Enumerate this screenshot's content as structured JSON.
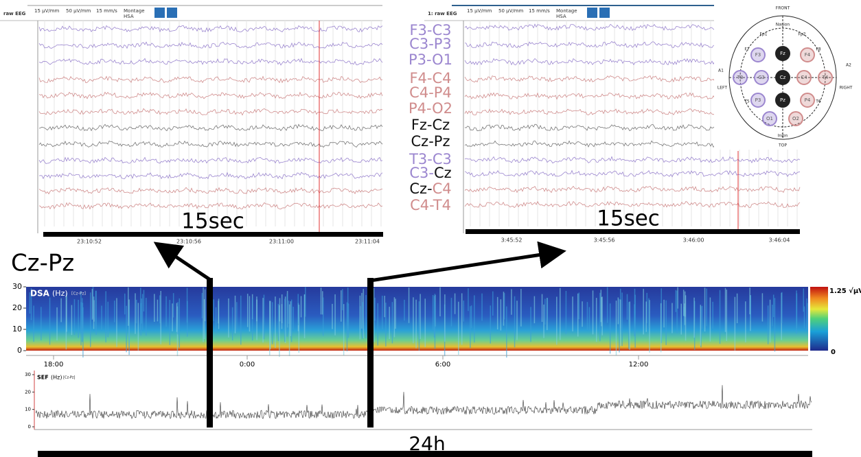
{
  "left_panel": {
    "toolbar": {
      "title": "raw EEG",
      "sens1": "15 µV/mm",
      "sens2": "50 µV/mm",
      "speed": "15 mm/s",
      "montage": "Montage",
      "montage_name": "HSA"
    },
    "times": [
      "23:10:52",
      "23:10:56",
      "23:11:00",
      "23:11:04"
    ],
    "duration": "15sec"
  },
  "right_panel": {
    "toolbar": {
      "title": "1: raw EEG",
      "sens1": "15 µV/mm",
      "sens2": "50 µV/mm",
      "speed": "15 mm/s",
      "montage": "Montage",
      "montage_name": "HSA"
    },
    "times": [
      "3:45:52",
      "3:45:56",
      "3:46:00",
      "3:46:04"
    ],
    "duration": "15sec"
  },
  "channels": [
    {
      "parts": [
        {
          "text": "F3-C3",
          "color": "#9b86cf"
        }
      ],
      "trace_color": "#9b86cf"
    },
    {
      "parts": [
        {
          "text": "C3-P3",
          "color": "#9b86cf"
        }
      ],
      "trace_color": "#9b86cf"
    },
    {
      "parts": [
        {
          "text": "P3-O1",
          "color": "#9b86cf"
        }
      ],
      "trace_color": "#9b86cf"
    },
    {
      "parts": [
        {
          "text": "F4-C4",
          "color": "#d08c8c"
        }
      ],
      "trace_color": "#d08c8c"
    },
    {
      "parts": [
        {
          "text": "C4-P4",
          "color": "#d08c8c"
        }
      ],
      "trace_color": "#d08c8c"
    },
    {
      "parts": [
        {
          "text": "P4-O2",
          "color": "#d08c8c"
        }
      ],
      "trace_color": "#d08c8c"
    },
    {
      "parts": [
        {
          "text": "Fz-Cz",
          "color": "#111111"
        }
      ],
      "trace_color": "#777777"
    },
    {
      "parts": [
        {
          "text": "Cz-Pz",
          "color": "#111111"
        }
      ],
      "trace_color": "#777777"
    },
    {
      "parts": [
        {
          "text": "T3-C3",
          "color": "#9b86cf"
        }
      ],
      "trace_color": "#9b86cf"
    },
    {
      "parts": [
        {
          "text": "C3-",
          "color": "#9b86cf"
        },
        {
          "text": "Cz",
          "color": "#111111"
        }
      ],
      "trace_color": "#9b86cf"
    },
    {
      "parts": [
        {
          "text": "Cz-",
          "color": "#111111"
        },
        {
          "text": "C4",
          "color": "#d08c8c"
        }
      ],
      "trace_color": "#d08c8c"
    },
    {
      "parts": [
        {
          "text": "C4-T4",
          "color": "#d08c8c"
        }
      ],
      "trace_color": "#d08c8c"
    }
  ],
  "head": {
    "front": "FRONT",
    "nasion": "Nasion",
    "inion": "Inion",
    "top": "TOP",
    "left": "LEFT",
    "right": "RIGHT",
    "a1": "A1",
    "a2": "A2",
    "fp1": "Fp1",
    "fp2": "Fp2",
    "f7": "F7",
    "f8": "F8",
    "t5": "T5",
    "t6": "T6",
    "electrodes": [
      {
        "label": "F3",
        "color": "#9b86cf"
      },
      {
        "label": "Fz",
        "color": "#222222"
      },
      {
        "label": "F4",
        "color": "#d08c8c"
      },
      {
        "label": "T3",
        "color": "#9b86cf"
      },
      {
        "label": "C3",
        "color": "#9b86cf"
      },
      {
        "label": "Cz",
        "color": "#222222"
      },
      {
        "label": "C4",
        "color": "#d08c8c"
      },
      {
        "label": "T4",
        "color": "#d08c8c"
      },
      {
        "label": "P3",
        "color": "#9b86cf"
      },
      {
        "label": "Pz",
        "color": "#222222"
      },
      {
        "label": "P4",
        "color": "#d08c8c"
      },
      {
        "label": "O1",
        "color": "#9b86cf"
      },
      {
        "label": "O2",
        "color": "#d08c8c"
      }
    ]
  },
  "overview_channel": "Cz-Pz",
  "dsa": {
    "label": "DSA",
    "unit": "(Hz)",
    "channel": "[Cz-Pz]",
    "ylim": [
      0,
      30
    ],
    "yticks": [
      0,
      10,
      20,
      30
    ],
    "colorbar_max": "1.25 √µV",
    "colorbar_min": 0
  },
  "time_axis": [
    "18:00",
    "0:00",
    "6:00",
    "12:00"
  ],
  "sef": {
    "label": "SEF",
    "unit": "(Hz)",
    "channel": "[Cz-Pz]",
    "ylim": [
      0,
      30
    ],
    "yticks": [
      0,
      10,
      20,
      30
    ]
  },
  "total_duration": "24h"
}
